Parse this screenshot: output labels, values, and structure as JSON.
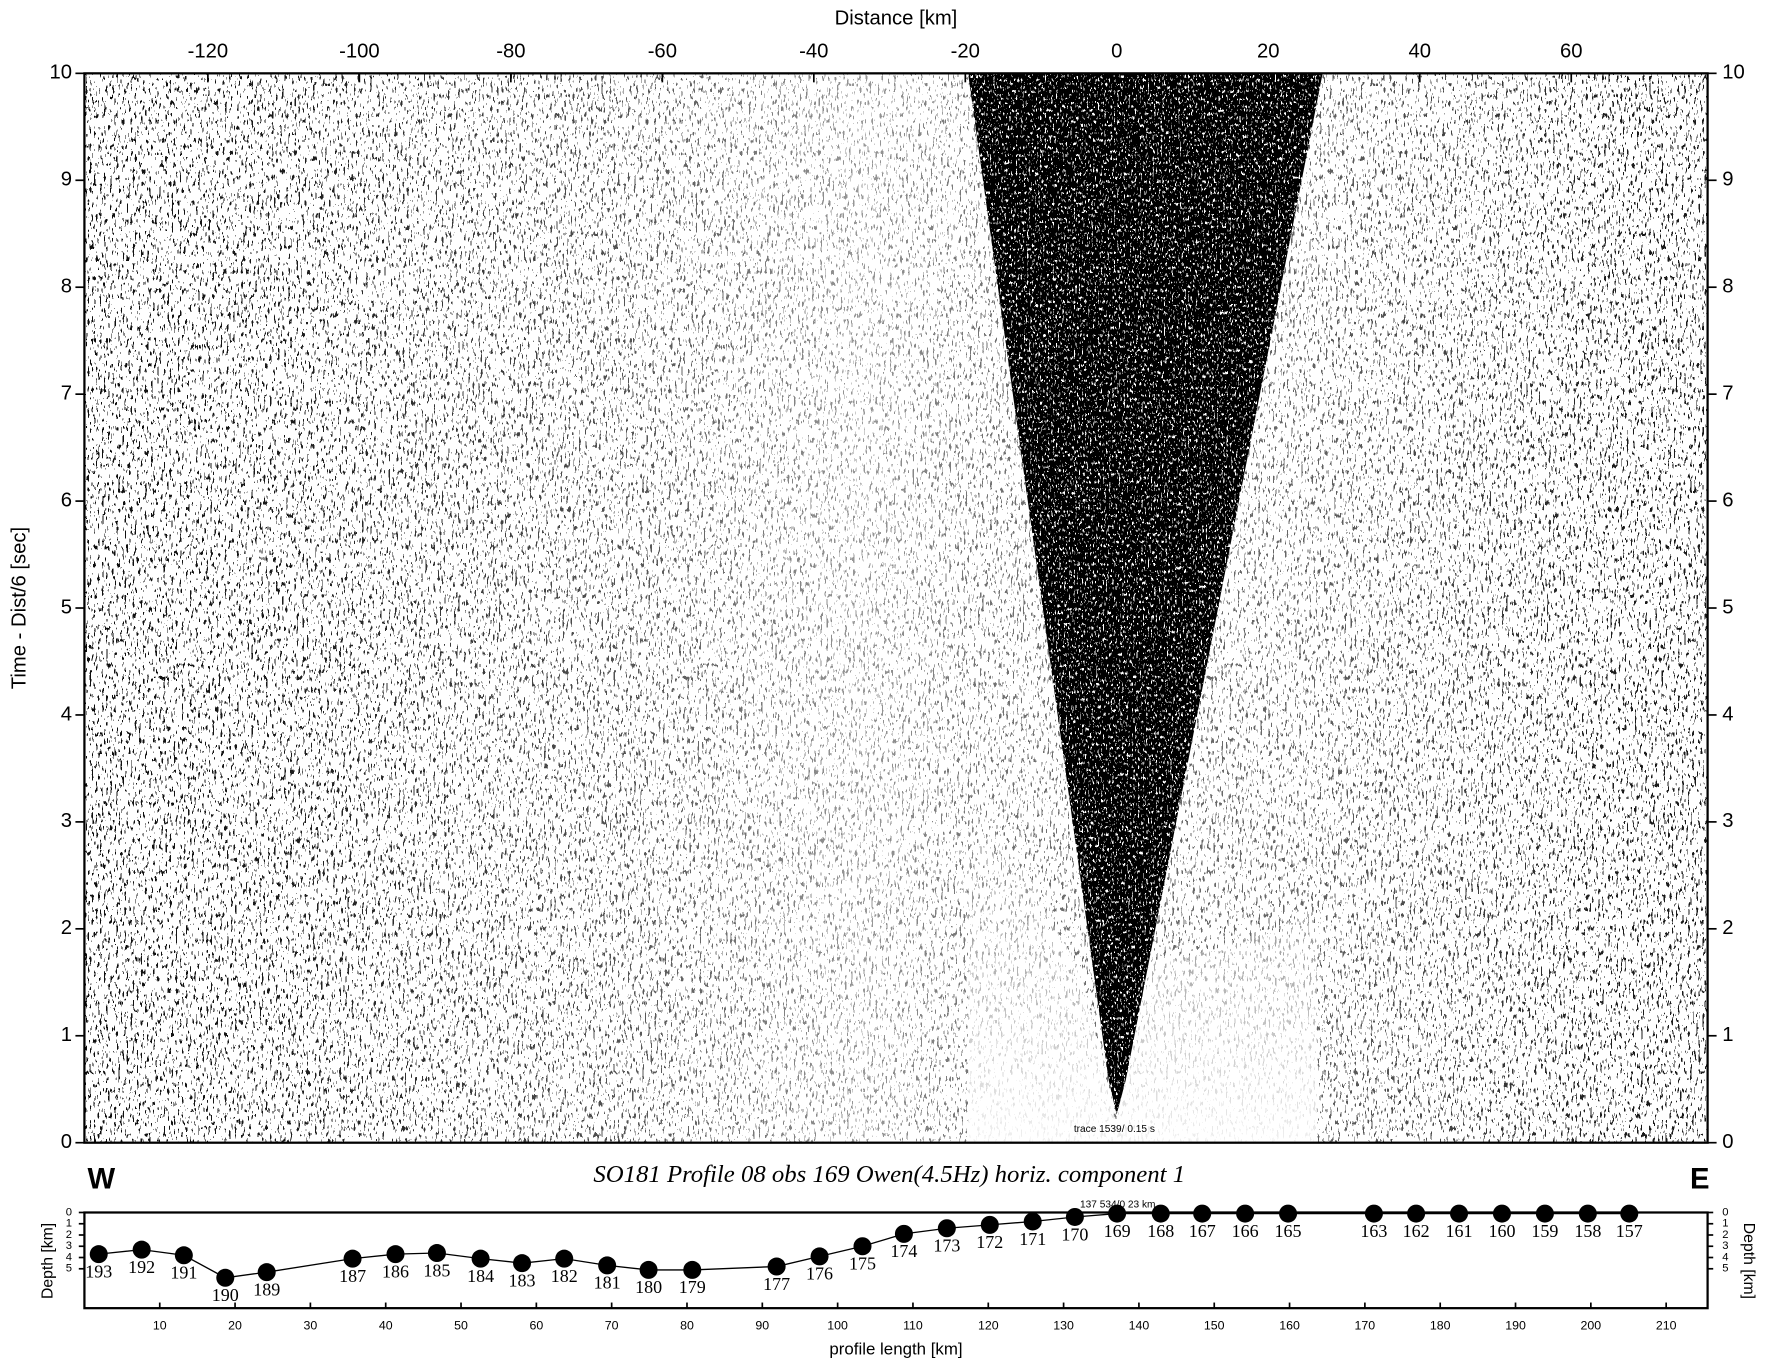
{
  "chart_data": [
    {
      "type": "seismic",
      "title": "SO181 Profile 08 obs 169 Owen(4.5Hz) horiz. component 1",
      "x_label": "Distance [km]",
      "y_label": "Time - Dist/6 [sec]",
      "west_label": "W",
      "east_label": "E",
      "annotation": "trace 1539/ 0.15 s",
      "xlim": [
        -136.3,
        78
      ],
      "xticks": [
        -120,
        -100,
        -80,
        -60,
        -40,
        -20,
        0,
        20,
        40,
        60
      ],
      "ylim": [
        0,
        10
      ],
      "yticks": [
        0,
        1,
        2,
        3,
        4,
        5,
        6,
        7,
        8,
        9,
        10
      ],
      "y2lim": [
        0,
        10
      ],
      "y2ticks": [
        0,
        1,
        2,
        3,
        4,
        5,
        6,
        7,
        8,
        9,
        10
      ]
    },
    {
      "type": "line",
      "x_label": "profile length [km]",
      "y_label": "Depth [km]",
      "y2_label": "Depth [km]",
      "annotation": "137 534/0 23 km",
      "xlim": [
        0,
        215.5
      ],
      "xticks": [
        10,
        20,
        30,
        40,
        50,
        60,
        70,
        80,
        90,
        100,
        110,
        120,
        130,
        140,
        150,
        160,
        170,
        180,
        190,
        200,
        210
      ],
      "ylim": [
        0,
        8.5
      ],
      "y_inverted": true,
      "yticks": [
        0,
        1,
        2,
        3,
        4,
        5
      ],
      "y2lim": [
        0,
        8.5
      ],
      "y2ticks": [
        0,
        1,
        2,
        3,
        4,
        5
      ],
      "color": "#000000",
      "labels": [
        "193",
        "192",
        "191",
        "190",
        "189",
        "187",
        "186",
        "185",
        "184",
        "183",
        "182",
        "181",
        "180",
        "179",
        "177",
        "176",
        "175",
        "174",
        "173",
        "172",
        "171",
        "170",
        "169",
        "168",
        "167",
        "166",
        "165",
        "163",
        "162",
        "161",
        "160",
        "159",
        "158",
        "157"
      ],
      "x": [
        1.9,
        7.6,
        13.2,
        18.7,
        24.2,
        35.6,
        41.3,
        46.8,
        52.6,
        58.1,
        63.7,
        69.4,
        74.9,
        80.7,
        91.9,
        97.6,
        103.3,
        108.8,
        114.5,
        120.2,
        125.9,
        131.5,
        137.1,
        142.9,
        148.4,
        154.1,
        159.8,
        171.2,
        176.8,
        182.5,
        188.2,
        193.9,
        199.6,
        205.1
      ],
      "values": [
        3.7,
        3.3,
        3.8,
        5.8,
        5.3,
        4.1,
        3.7,
        3.6,
        4.1,
        4.5,
        4.1,
        4.7,
        5.1,
        5.1,
        4.8,
        3.9,
        3.0,
        1.9,
        1.4,
        1.1,
        0.8,
        0.4,
        0.1,
        0.1,
        0.1,
        0.1,
        0.1,
        0.1,
        0.1,
        0.1,
        0.1,
        0.1,
        0.1,
        0.1
      ]
    }
  ]
}
